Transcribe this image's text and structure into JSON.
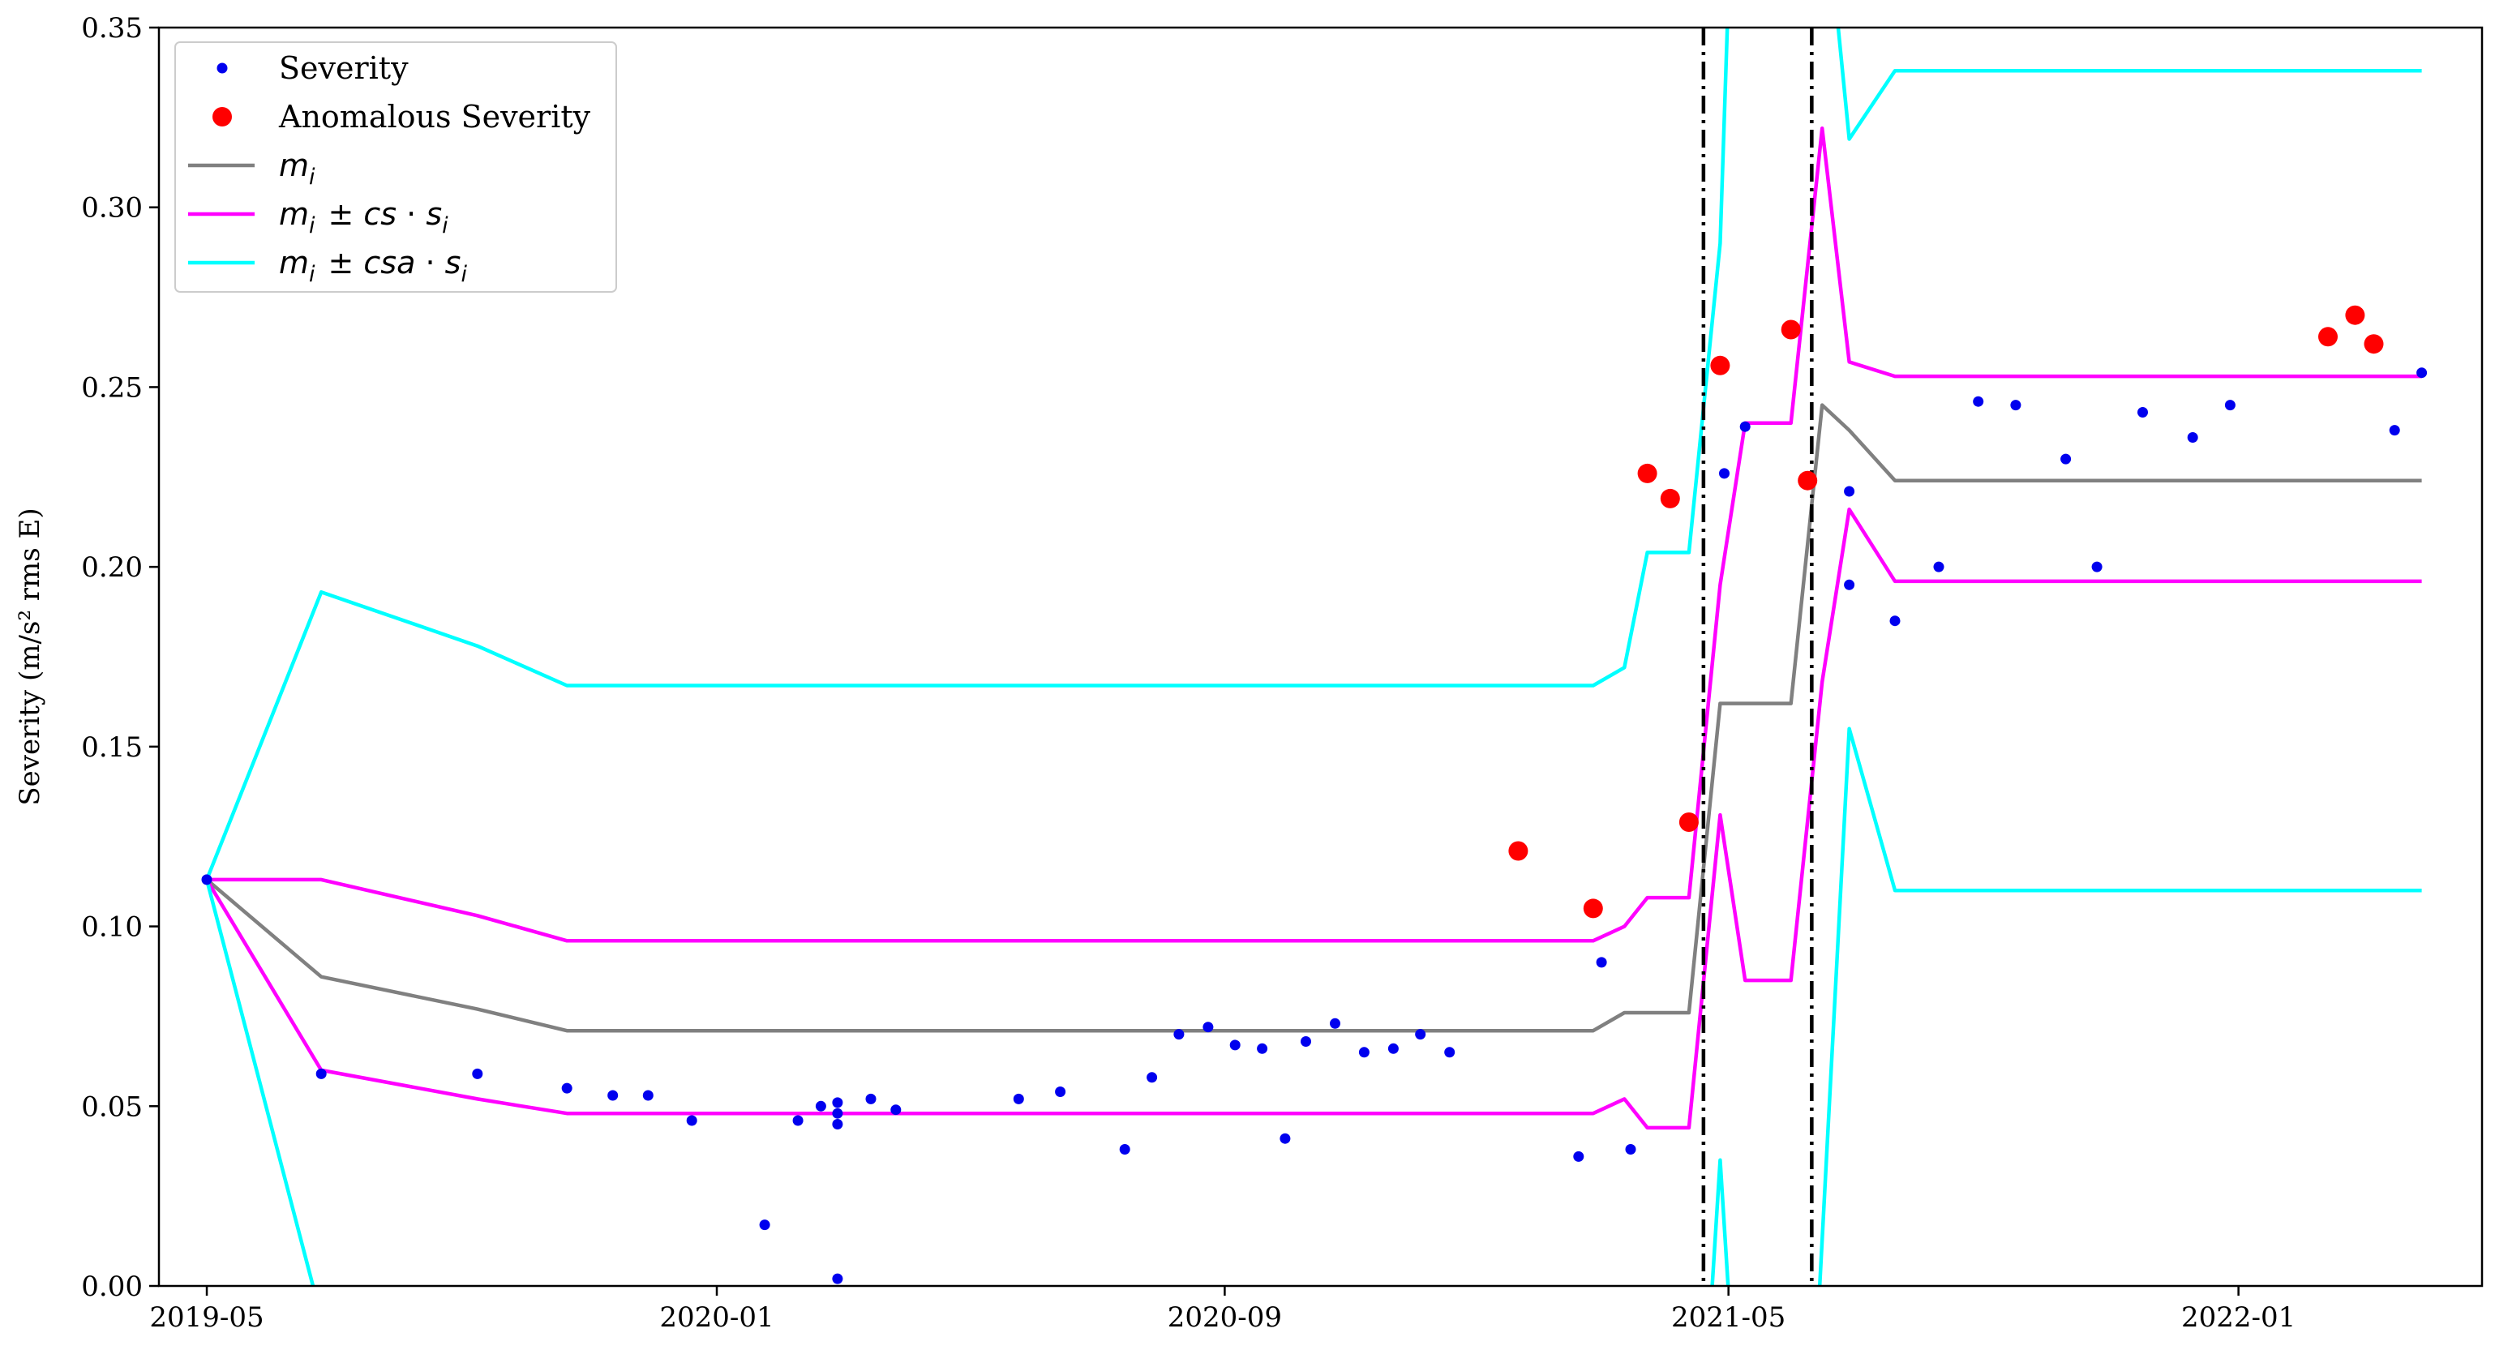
{
  "chart_data": {
    "type": "scatter",
    "title": "",
    "xlabel": "",
    "ylabel": "Severity (m/s² rms E)",
    "ylim": [
      0,
      0.35
    ],
    "xlim": [
      "2019-04-08",
      "2022-04-28"
    ],
    "x_ticks": [
      "2019-05-01",
      "2020-01-01",
      "2020-09-01",
      "2021-05-01",
      "2022-01-01"
    ],
    "x_tick_labels": [
      "2019-05",
      "2020-01",
      "2020-09",
      "2021-05",
      "2022-01"
    ],
    "y_ticks": [
      0.0,
      0.05,
      0.1,
      0.15,
      0.2,
      0.25,
      0.3,
      0.35
    ],
    "y_tick_labels": [
      "0.00",
      "0.05",
      "0.10",
      "0.15",
      "0.20",
      "0.25",
      "0.30",
      "0.35"
    ],
    "grid": false,
    "legend_position": "top-left",
    "vlines": [
      "2021-04-19",
      "2021-06-10"
    ],
    "series": [
      {
        "name": "Severity",
        "kind": "scatter",
        "color": "#0000ee",
        "points": [
          [
            "2019-05-01",
            0.113
          ],
          [
            "2019-06-25",
            0.059
          ],
          [
            "2019-09-08",
            0.059
          ],
          [
            "2019-10-21",
            0.055
          ],
          [
            "2019-11-12",
            0.053
          ],
          [
            "2019-11-29",
            0.053
          ],
          [
            "2019-12-20",
            0.046
          ],
          [
            "2020-01-24",
            0.017
          ],
          [
            "2020-02-09",
            0.046
          ],
          [
            "2020-02-20",
            0.05
          ],
          [
            "2020-02-28",
            0.051
          ],
          [
            "2020-02-28",
            0.048
          ],
          [
            "2020-02-28",
            0.045
          ],
          [
            "2020-02-28",
            0.002
          ],
          [
            "2020-03-15",
            0.052
          ],
          [
            "2020-03-27",
            0.049
          ],
          [
            "2020-05-25",
            0.052
          ],
          [
            "2020-06-14",
            0.054
          ],
          [
            "2020-07-15",
            0.038
          ],
          [
            "2020-07-28",
            0.058
          ],
          [
            "2020-08-10",
            0.07
          ],
          [
            "2020-08-24",
            0.072
          ],
          [
            "2020-09-06",
            0.067
          ],
          [
            "2020-09-19",
            0.066
          ],
          [
            "2020-09-30",
            0.041
          ],
          [
            "2020-10-10",
            0.068
          ],
          [
            "2020-10-24",
            0.073
          ],
          [
            "2020-11-07",
            0.065
          ],
          [
            "2020-11-21",
            0.066
          ],
          [
            "2020-12-04",
            0.07
          ],
          [
            "2020-12-18",
            0.065
          ],
          [
            "2021-02-18",
            0.036
          ],
          [
            "2021-03-01",
            0.09
          ],
          [
            "2021-03-15",
            0.038
          ],
          [
            "2021-04-29",
            0.226
          ],
          [
            "2021-05-09",
            0.239
          ],
          [
            "2021-06-28",
            0.221
          ],
          [
            "2021-06-28",
            0.195
          ],
          [
            "2021-07-20",
            0.185
          ],
          [
            "2021-08-10",
            0.2
          ],
          [
            "2021-08-29",
            0.246
          ],
          [
            "2021-09-16",
            0.245
          ],
          [
            "2021-10-10",
            0.23
          ],
          [
            "2021-10-25",
            0.2
          ],
          [
            "2021-11-16",
            0.243
          ],
          [
            "2021-12-10",
            0.236
          ],
          [
            "2021-12-28",
            0.245
          ],
          [
            "2022-03-17",
            0.238
          ],
          [
            "2022-03-30",
            0.254
          ]
        ]
      },
      {
        "name": "Anomalous Severity",
        "kind": "scatter",
        "color": "#ff0000",
        "points": [
          [
            "2021-01-20",
            0.121
          ],
          [
            "2021-02-25",
            0.105
          ],
          [
            "2021-03-23",
            0.226
          ],
          [
            "2021-04-03",
            0.219
          ],
          [
            "2021-04-12",
            0.129
          ],
          [
            "2021-04-27",
            0.256
          ],
          [
            "2021-05-31",
            0.266
          ],
          [
            "2021-06-08",
            0.224
          ],
          [
            "2022-02-13",
            0.264
          ],
          [
            "2022-02-26",
            0.27
          ],
          [
            "2022-03-07",
            0.262
          ]
        ]
      },
      {
        "name": "m_i",
        "kind": "line",
        "color": "#808080",
        "points": [
          [
            "2019-05-01",
            0.113
          ],
          [
            "2019-06-25",
            0.086
          ],
          [
            "2019-09-08",
            0.077
          ],
          [
            "2019-10-21",
            0.071
          ],
          [
            "2021-02-25",
            0.071
          ],
          [
            "2021-03-12",
            0.076
          ],
          [
            "2021-04-12",
            0.076
          ],
          [
            "2021-04-27",
            0.162
          ],
          [
            "2021-05-31",
            0.162
          ],
          [
            "2021-06-15",
            0.245
          ],
          [
            "2021-06-28",
            0.238
          ],
          [
            "2021-07-20",
            0.224
          ],
          [
            "2022-03-30",
            0.224
          ]
        ]
      },
      {
        "name": "m_i + cs·s_i",
        "kind": "line",
        "color": "#ff00ff",
        "points": [
          [
            "2019-05-01",
            0.113
          ],
          [
            "2019-06-25",
            0.113
          ],
          [
            "2019-09-08",
            0.103
          ],
          [
            "2019-10-21",
            0.096
          ],
          [
            "2021-02-25",
            0.096
          ],
          [
            "2021-03-12",
            0.1
          ],
          [
            "2021-03-23",
            0.108
          ],
          [
            "2021-04-12",
            0.108
          ],
          [
            "2021-04-27",
            0.195
          ],
          [
            "2021-05-09",
            0.24
          ],
          [
            "2021-05-31",
            0.24
          ],
          [
            "2021-06-15",
            0.322
          ],
          [
            "2021-06-28",
            0.257
          ],
          [
            "2021-07-20",
            0.253
          ],
          [
            "2022-03-30",
            0.253
          ]
        ]
      },
      {
        "name": "m_i - cs·s_i",
        "kind": "line",
        "color": "#ff00ff",
        "points": [
          [
            "2019-05-01",
            0.113
          ],
          [
            "2019-06-25",
            0.06
          ],
          [
            "2019-09-08",
            0.052
          ],
          [
            "2019-10-21",
            0.048
          ],
          [
            "2021-02-25",
            0.048
          ],
          [
            "2021-03-12",
            0.052
          ],
          [
            "2021-03-23",
            0.044
          ],
          [
            "2021-04-12",
            0.044
          ],
          [
            "2021-04-27",
            0.131
          ],
          [
            "2021-05-09",
            0.085
          ],
          [
            "2021-05-31",
            0.085
          ],
          [
            "2021-06-15",
            0.168
          ],
          [
            "2021-06-28",
            0.216
          ],
          [
            "2021-07-20",
            0.196
          ],
          [
            "2022-03-30",
            0.196
          ]
        ]
      },
      {
        "name": "m_i + csa·s_i",
        "kind": "line",
        "color": "#00ffff",
        "points": [
          [
            "2019-05-01",
            0.113
          ],
          [
            "2019-06-25",
            0.193
          ],
          [
            "2019-09-08",
            0.178
          ],
          [
            "2019-10-21",
            0.167
          ],
          [
            "2021-02-25",
            0.167
          ],
          [
            "2021-03-12",
            0.172
          ],
          [
            "2021-03-23",
            0.204
          ],
          [
            "2021-04-12",
            0.204
          ],
          [
            "2021-04-27",
            0.29
          ],
          [
            "2021-05-01",
            0.36
          ],
          [
            "2021-06-21",
            0.36
          ],
          [
            "2021-06-28",
            0.319
          ],
          [
            "2021-07-20",
            0.338
          ],
          [
            "2022-03-30",
            0.338
          ]
        ]
      },
      {
        "name": "m_i - csa·s_i",
        "kind": "line",
        "color": "#00ffff",
        "points": [
          [
            "2019-05-01",
            0.113
          ],
          [
            "2019-06-21",
            0.0
          ],
          [
            "2019-06-28",
            -0.02
          ]
        ]
      },
      {
        "name": "m_i - csa·s_i (2021)",
        "kind": "line",
        "color": "#00ffff",
        "points": [
          [
            "2021-04-21",
            -0.02
          ],
          [
            "2021-04-27",
            0.035
          ],
          [
            "2021-05-03",
            -0.02
          ]
        ]
      },
      {
        "name": "m_i - csa·s_i (late)",
        "kind": "line",
        "color": "#00ffff",
        "points": [
          [
            "2021-06-12",
            -0.02
          ],
          [
            "2021-06-28",
            0.155
          ],
          [
            "2021-07-20",
            0.11
          ],
          [
            "2022-03-30",
            0.11
          ]
        ]
      }
    ],
    "legend": [
      {
        "label": "Severity",
        "marker": "dot-small",
        "color": "#0000ee",
        "math": false
      },
      {
        "label": "Anomalous Severity",
        "marker": "dot-large",
        "color": "#ff0000",
        "math": false
      },
      {
        "label": "m_i",
        "marker": "line",
        "color": "#808080",
        "math": true
      },
      {
        "label": "m_i ± cs · s_i",
        "marker": "line",
        "color": "#ff00ff",
        "math": true
      },
      {
        "label": "m_i ± csa · s_i",
        "marker": "line",
        "color": "#00ffff",
        "math": true
      }
    ]
  }
}
